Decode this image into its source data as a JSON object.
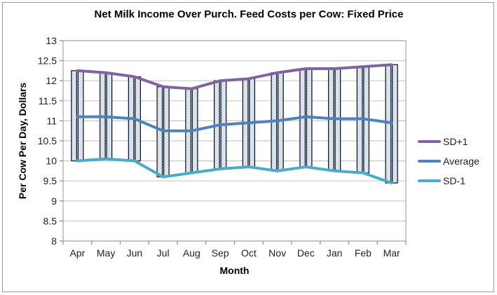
{
  "window": {
    "background": "#ffffff",
    "border_color": "#9b9b9b"
  },
  "chart_data": {
    "type": "line",
    "title": "Net Milk Income Over Purch. Feed Costs per Cow: Fixed Price",
    "xlabel": "Month",
    "ylabel": "Per Cow Per Day, Dollars",
    "categories": [
      "Apr",
      "May",
      "Jun",
      "Jul",
      "Aug",
      "Sep",
      "Oct",
      "Nov",
      "Dec",
      "Jan",
      "Feb",
      "Mar"
    ],
    "series": [
      {
        "name": "SD+1",
        "color": "#8064A2",
        "values": [
          12.25,
          12.2,
          12.1,
          11.85,
          11.8,
          12.0,
          12.05,
          12.2,
          12.3,
          12.3,
          12.35,
          12.4
        ]
      },
      {
        "name": "Average",
        "color": "#4F81BD",
        "values": [
          11.1,
          11.1,
          11.05,
          10.75,
          10.75,
          10.9,
          10.95,
          11.0,
          11.1,
          11.05,
          11.05,
          10.95
        ]
      },
      {
        "name": "SD-1",
        "color": "#4BACC6",
        "values": [
          10.0,
          10.05,
          10.0,
          9.6,
          9.7,
          9.8,
          9.85,
          9.75,
          9.85,
          9.75,
          9.7,
          9.45
        ]
      }
    ],
    "range_bars": {
      "high_series": "SD+1",
      "low_series": "SD-1",
      "bars_per_month": 2,
      "fill_base": "#eaeff8",
      "fill_dot": "#b4c7e4",
      "border_color": "#1a1a1a"
    },
    "ylim": [
      8,
      13
    ],
    "ytick_step": 0.5,
    "yticks": [
      13,
      12.5,
      12,
      11.5,
      11,
      10.5,
      10,
      9.5,
      9,
      8.5,
      8
    ],
    "grid": true,
    "legend_position": "right",
    "colors": {
      "gridline": "#c9c9c9",
      "frame": "#a6a6a6",
      "tick": "#8c8c8c",
      "text": "#1f1f1f"
    }
  }
}
